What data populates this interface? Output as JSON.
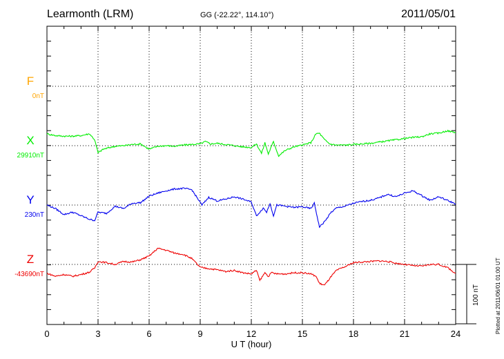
{
  "header": {
    "station": "Learmonth (LRM)",
    "coords": "GG (-22.22°, 114.10°)",
    "date": "2011/05/01"
  },
  "chart_data": {
    "type": "line",
    "title": "Learmonth (LRM)",
    "xlabel": "U T (hour)",
    "xlim": [
      0,
      24
    ],
    "xticks": [
      "0",
      "3",
      "6",
      "9",
      "12",
      "15",
      "18",
      "21",
      "24"
    ],
    "scale_label": "100 nT",
    "plotted_note": "Plotted at 2011/06/01 01:00 UT",
    "grid": true,
    "series": [
      {
        "name": "F",
        "baseline": "0nT",
        "color": "#ffa500",
        "x": [],
        "values": []
      },
      {
        "name": "X",
        "baseline": "29910nT",
        "color": "#00ee00",
        "x": [
          0,
          0.5,
          1,
          1.5,
          2,
          2.5,
          2.8,
          3,
          3.3,
          3.7,
          4,
          4.5,
          5,
          5.5,
          6,
          6.5,
          7,
          7.5,
          8,
          8.5,
          9,
          9.3,
          9.6,
          10,
          10.5,
          11,
          11.5,
          12,
          12.3,
          12.6,
          12.8,
          13,
          13.3,
          13.6,
          14,
          14.5,
          15,
          15.5,
          15.8,
          16,
          16.3,
          16.6,
          17,
          17.5,
          18,
          18.5,
          19,
          19.5,
          20,
          20.5,
          21,
          21.5,
          22,
          22.5,
          23,
          23.5,
          24
        ],
        "values": [
          20,
          17,
          16,
          16,
          17,
          20,
          10,
          -12,
          -6,
          -3,
          -1,
          0,
          2,
          3,
          -6,
          -1,
          0,
          -1,
          1,
          2,
          3,
          7,
          3,
          4,
          2,
          0,
          -2,
          -3,
          3,
          -13,
          5,
          -14,
          7,
          -17,
          -8,
          -2,
          1,
          5,
          20,
          21,
          10,
          3,
          1,
          1,
          2,
          3,
          4,
          6,
          8,
          10,
          12,
          14,
          15,
          20,
          21,
          25,
          22
        ]
      },
      {
        "name": "Y",
        "baseline": "230nT",
        "color": "#0000ee",
        "x": [
          0,
          0.5,
          1,
          1.5,
          2,
          2.5,
          2.8,
          3,
          3.5,
          4,
          4.5,
          5,
          5.5,
          6,
          6.5,
          7,
          7.5,
          8,
          8.5,
          8.8,
          9.1,
          9.5,
          10,
          10.5,
          11,
          11.5,
          12,
          12.3,
          12.5,
          12.7,
          12.9,
          13.1,
          13.3,
          13.5,
          14,
          14.5,
          15,
          15.5,
          15.7,
          16,
          16.3,
          16.7,
          17,
          17.5,
          18,
          18.5,
          19,
          19.5,
          20,
          20.5,
          21,
          21.5,
          22,
          22.5,
          23,
          23.5,
          24
        ],
        "values": [
          0,
          -6,
          -16,
          -12,
          -18,
          -24,
          -26,
          -12,
          -14,
          -2,
          -6,
          3,
          4,
          15,
          20,
          24,
          27,
          28,
          26,
          13,
          0,
          13,
          7,
          10,
          14,
          10,
          5,
          -18,
          -12,
          -5,
          -12,
          3,
          -18,
          0,
          -2,
          -4,
          -3,
          -6,
          3,
          -37,
          -28,
          -12,
          -5,
          -2,
          3,
          6,
          8,
          12,
          18,
          14,
          20,
          24,
          16,
          8,
          14,
          8,
          2
        ]
      },
      {
        "name": "Z",
        "baseline": "-43690nT",
        "color": "#ee0000",
        "x": [
          0,
          0.5,
          1,
          1.5,
          2,
          2.5,
          2.8,
          3,
          3.5,
          4,
          4.5,
          5,
          5.5,
          6,
          6.5,
          7,
          7.5,
          8,
          8.5,
          9,
          9.5,
          10,
          10.5,
          11,
          11.5,
          12,
          12.3,
          12.5,
          12.8,
          13,
          13.2,
          13.5,
          14,
          14.5,
          15,
          15.5,
          15.8,
          16,
          16.3,
          16.7,
          17,
          17.5,
          18,
          18.5,
          19,
          19.5,
          20,
          20.5,
          21,
          21.5,
          22,
          22.5,
          23,
          23.5,
          24
        ],
        "values": [
          -15,
          -20,
          -17,
          -20,
          -17,
          -13,
          -6,
          5,
          3,
          0,
          5,
          4,
          8,
          14,
          27,
          24,
          19,
          17,
          10,
          -5,
          -7,
          -9,
          -12,
          -10,
          -14,
          -16,
          -10,
          -27,
          -14,
          -20,
          -14,
          -16,
          -16,
          -14,
          -14,
          -16,
          -20,
          -32,
          -35,
          -20,
          -10,
          -4,
          3,
          4,
          5,
          6,
          5,
          2,
          0,
          -2,
          -3,
          0,
          0,
          -5,
          -15
        ]
      }
    ]
  }
}
